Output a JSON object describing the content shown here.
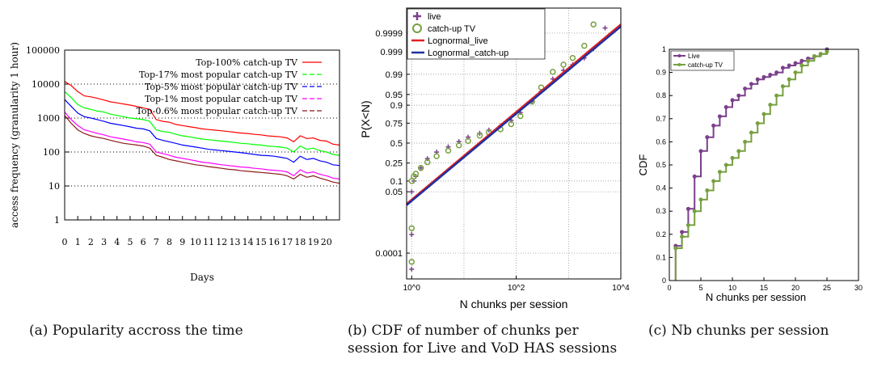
{
  "chart_data": [
    {
      "id": "a",
      "type": "line",
      "caption": "(a) Popularity accross the time",
      "xlabel": "Days",
      "ylabel": "access frequency (granularity 1 hour)",
      "xlim": [
        0,
        21
      ],
      "ylim": [
        1,
        100000
      ],
      "yscale": "log",
      "grid": true,
      "legend_position": "top-right",
      "xticks": [
        "0",
        "1",
        "2",
        "3",
        "4",
        "5",
        "6",
        "7",
        "8",
        "9",
        "10",
        "11",
        "12",
        "13",
        "14",
        "15",
        "16",
        "17",
        "18",
        "19",
        "20"
      ],
      "yticks": [
        "1",
        "10",
        "100",
        "1000",
        "10000",
        "100000"
      ],
      "series": [
        {
          "name": "Top-100% catch-up TV",
          "color": "#ff0000",
          "x": [
            0,
            0.5,
            1,
            1.5,
            2,
            2.5,
            3,
            3.5,
            4,
            4.5,
            5,
            5.5,
            6,
            6.5,
            7,
            7.5,
            8,
            8.5,
            9,
            9.5,
            10,
            10.5,
            11,
            11.5,
            12,
            12.5,
            13,
            13.5,
            14,
            14.5,
            15,
            15.5,
            16,
            16.5,
            17,
            17.5,
            18,
            18.5,
            19,
            19.5,
            20,
            20.5,
            21
          ],
          "y": [
            12000,
            9000,
            6000,
            4500,
            4200,
            3800,
            3400,
            3000,
            2800,
            2600,
            2400,
            2200,
            2000,
            1800,
            900,
            800,
            750,
            650,
            600,
            560,
            520,
            480,
            460,
            440,
            420,
            400,
            380,
            360,
            350,
            330,
            320,
            300,
            290,
            280,
            260,
            200,
            300,
            250,
            260,
            220,
            210,
            170,
            160
          ]
        },
        {
          "name": "Top-17% most popular catch-up TV",
          "color": "#00ff00",
          "x": [
            0,
            0.5,
            1,
            1.5,
            2,
            2.5,
            3,
            3.5,
            4,
            4.5,
            5,
            5.5,
            6,
            6.5,
            7,
            7.5,
            8,
            8.5,
            9,
            9.5,
            10,
            10.5,
            11,
            11.5,
            12,
            12.5,
            13,
            13.5,
            14,
            14.5,
            15,
            15.5,
            16,
            16.5,
            17,
            17.5,
            18,
            18.5,
            19,
            19.5,
            20,
            20.5,
            21
          ],
          "y": [
            6000,
            4000,
            2500,
            2000,
            1800,
            1600,
            1500,
            1300,
            1200,
            1100,
            1000,
            950,
            900,
            800,
            450,
            400,
            380,
            330,
            300,
            280,
            260,
            240,
            230,
            220,
            210,
            200,
            190,
            180,
            175,
            165,
            160,
            150,
            145,
            140,
            130,
            100,
            150,
            120,
            130,
            110,
            100,
            85,
            80
          ]
        },
        {
          "name": "Top-5% most popular catch-up TV",
          "color": "#0000ff",
          "x": [
            0,
            0.5,
            1,
            1.5,
            2,
            2.5,
            3,
            3.5,
            4,
            4.5,
            5,
            5.5,
            6,
            6.5,
            7,
            7.5,
            8,
            8.5,
            9,
            9.5,
            10,
            10.5,
            11,
            11.5,
            12,
            12.5,
            13,
            13.5,
            14,
            14.5,
            15,
            15.5,
            16,
            16.5,
            17,
            17.5,
            18,
            18.5,
            19,
            19.5,
            20,
            20.5,
            21
          ],
          "y": [
            3500,
            2200,
            1400,
            1100,
            1000,
            900,
            800,
            700,
            650,
            600,
            550,
            500,
            480,
            420,
            250,
            220,
            200,
            180,
            160,
            150,
            140,
            130,
            120,
            115,
            110,
            105,
            100,
            95,
            90,
            85,
            80,
            78,
            75,
            70,
            65,
            50,
            75,
            60,
            65,
            55,
            50,
            42,
            40
          ]
        },
        {
          "name": "Top-1% most popular catch-up TV",
          "color": "#ff00ff",
          "x": [
            0,
            0.5,
            1,
            1.5,
            2,
            2.5,
            3,
            3.5,
            4,
            4.5,
            5,
            5.5,
            6,
            6.5,
            7,
            7.5,
            8,
            8.5,
            9,
            9.5,
            10,
            10.5,
            11,
            11.5,
            12,
            12.5,
            13,
            13.5,
            14,
            14.5,
            15,
            15.5,
            16,
            16.5,
            17,
            17.5,
            18,
            18.5,
            19,
            19.5,
            20,
            20.5,
            21
          ],
          "y": [
            1500,
            900,
            600,
            450,
            400,
            350,
            320,
            280,
            260,
            240,
            220,
            200,
            190,
            170,
            100,
            90,
            80,
            70,
            65,
            60,
            55,
            50,
            48,
            45,
            42,
            40,
            38,
            36,
            35,
            33,
            32,
            30,
            29,
            28,
            26,
            20,
            30,
            24,
            26,
            22,
            20,
            17,
            16
          ]
        },
        {
          "name": "Top-0.6% most popular catch-up TV",
          "color": "#8b1a1a",
          "x": [
            0,
            0.5,
            1,
            1.5,
            2,
            2.5,
            3,
            3.5,
            4,
            4.5,
            5,
            5.5,
            6,
            6.5,
            7,
            7.5,
            8,
            8.5,
            9,
            9.5,
            10,
            10.5,
            11,
            11.5,
            12,
            12.5,
            13,
            13.5,
            14,
            14.5,
            15,
            15.5,
            16,
            16.5,
            17,
            17.5,
            18,
            18.5,
            19,
            19.5,
            20,
            20.5,
            21
          ],
          "y": [
            1200,
            700,
            450,
            350,
            300,
            270,
            250,
            220,
            200,
            180,
            170,
            160,
            150,
            130,
            80,
            70,
            60,
            55,
            50,
            46,
            42,
            40,
            37,
            35,
            33,
            31,
            30,
            28,
            27,
            26,
            25,
            24,
            23,
            22,
            20,
            16,
            22,
            18,
            20,
            17,
            15,
            13,
            12
          ]
        }
      ]
    },
    {
      "id": "b",
      "type": "scatter",
      "caption": "(b) CDF of number of chunks per session for Live and VoD HAS sessions",
      "xlabel": "N chunks per session",
      "ylabel": "P(X<N)",
      "xscale": "log",
      "xlim": [
        0.8,
        10000
      ],
      "grid": true,
      "legend_position": "top-left",
      "xticks": [
        "10^0",
        "10^2",
        "10^4"
      ],
      "yticks": [
        "0.9999",
        "0.999",
        "0.99",
        "0.95",
        "0.9",
        "0.75",
        "0.5",
        "0.25",
        "0.1",
        "0.05",
        "0.0001"
      ],
      "series": [
        {
          "name": "live",
          "color": "#7b3f8c",
          "marker": "+",
          "x": [
            1,
            1,
            1,
            1.1,
            1.2,
            1.5,
            2,
            3,
            5,
            8,
            12,
            20,
            30,
            50,
            80,
            120,
            200,
            300,
            500,
            800,
            1200,
            2000,
            3000,
            5000
          ],
          "y": [
            1e-05,
            0.001,
            0.05,
            0.1,
            0.13,
            0.2,
            0.3,
            0.38,
            0.45,
            0.52,
            0.58,
            0.63,
            0.67,
            0.72,
            0.78,
            0.85,
            0.92,
            0.96,
            0.985,
            0.993,
            0.996,
            0.998,
            0.9993,
            0.99995
          ]
        },
        {
          "name": "catch-up TV",
          "color": "#77a040",
          "marker": "o",
          "x": [
            1,
            1,
            1,
            1.1,
            1.2,
            1.5,
            2,
            3,
            5,
            8,
            12,
            20,
            30,
            50,
            80,
            120,
            200,
            300,
            500,
            800,
            1200,
            2000,
            3000
          ],
          "y": [
            3e-05,
            0.002,
            0.1,
            0.13,
            0.15,
            0.2,
            0.26,
            0.33,
            0.4,
            0.47,
            0.53,
            0.6,
            0.64,
            0.68,
            0.74,
            0.82,
            0.92,
            0.97,
            0.992,
            0.996,
            0.998,
            0.9995,
            0.99997
          ]
        },
        {
          "name": "Lognormal_live",
          "color": "#e02020",
          "marker": "line",
          "x": [
            0.8,
            10000
          ],
          "y": [
            0.02,
            0.99997
          ]
        },
        {
          "name": "Lognormal_catch-up",
          "color": "#2030a0",
          "marker": "line",
          "x": [
            0.8,
            10000
          ],
          "y": [
            0.018,
            0.99996
          ]
        }
      ]
    },
    {
      "id": "c",
      "type": "line",
      "caption": "(c) Nb chunks per session",
      "xlabel": "N chunks per session",
      "ylabel": "CDF",
      "xlim": [
        0,
        30
      ],
      "ylim": [
        0,
        1
      ],
      "grid": false,
      "legend_position": "top-left",
      "xticks": [
        "0",
        "5",
        "10",
        "15",
        "20",
        "25",
        "30"
      ],
      "yticks": [
        "0",
        "0.1",
        "0.2",
        "0.3",
        "0.4",
        "0.5",
        "0.6",
        "0.7",
        "0.8",
        "0.9",
        "1"
      ],
      "series": [
        {
          "name": "Live",
          "color": "#7b3f8c",
          "x": [
            1,
            2,
            3,
            4,
            5,
            6,
            7,
            8,
            9,
            10,
            11,
            12,
            13,
            14,
            15,
            16,
            17,
            18,
            19,
            20,
            21,
            22,
            23,
            24,
            25
          ],
          "y": [
            0.15,
            0.21,
            0.31,
            0.45,
            0.56,
            0.62,
            0.67,
            0.71,
            0.75,
            0.78,
            0.8,
            0.83,
            0.85,
            0.87,
            0.88,
            0.89,
            0.9,
            0.92,
            0.93,
            0.94,
            0.95,
            0.96,
            0.97,
            0.98,
            1.0
          ]
        },
        {
          "name": "catch-up TV",
          "color": "#77a040",
          "x": [
            1,
            2,
            3,
            4,
            5,
            6,
            7,
            8,
            9,
            10,
            11,
            12,
            13,
            14,
            15,
            16,
            17,
            18,
            19,
            20,
            21,
            22,
            23,
            24,
            25
          ],
          "y": [
            0.14,
            0.19,
            0.24,
            0.3,
            0.35,
            0.39,
            0.43,
            0.47,
            0.5,
            0.53,
            0.56,
            0.6,
            0.64,
            0.68,
            0.72,
            0.76,
            0.8,
            0.84,
            0.87,
            0.9,
            0.93,
            0.95,
            0.97,
            0.98,
            0.99
          ]
        }
      ]
    }
  ]
}
